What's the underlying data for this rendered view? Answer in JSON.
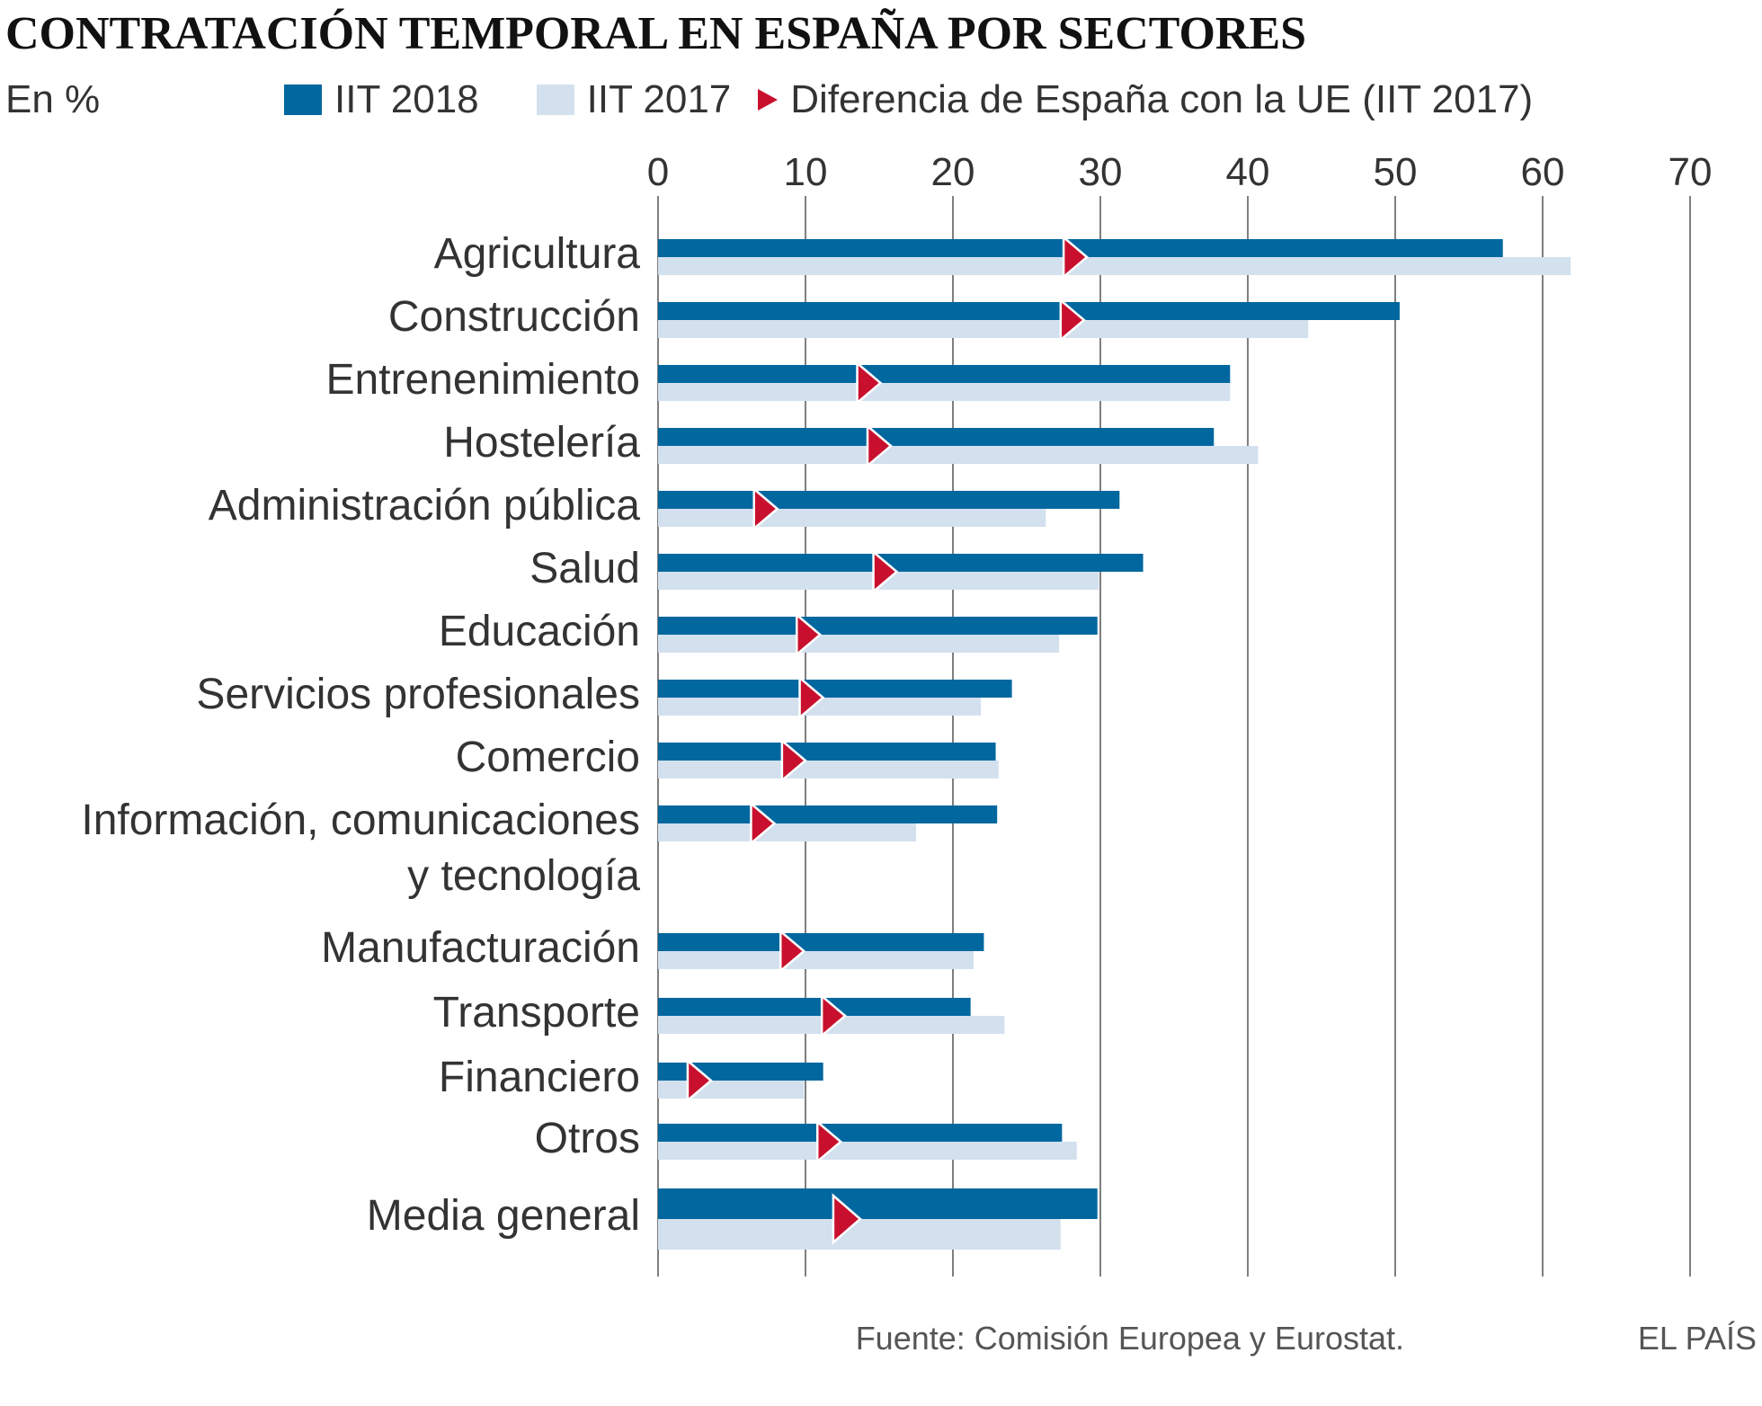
{
  "header": {
    "title": "CONTRATACIÓN TEMPORAL EN ESPAÑA POR SECTORES",
    "unit": "En %"
  },
  "legend": {
    "s2018": "IIT 2018",
    "s2017": "IIT 2017",
    "diff": "Diferencia de España con la UE (IIT 2017)"
  },
  "footer": {
    "source": "Fuente: Comisión Europea y Eurostat.",
    "brand": "EL PAÍS"
  },
  "colors": {
    "s2018": "#00679f",
    "s2017": "#d3e0ee",
    "diff": "#c8102e",
    "grid": "#555555"
  },
  "chart_data": {
    "type": "bar",
    "orientation": "horizontal",
    "xlim": [
      0,
      70
    ],
    "xticks": [
      0,
      10,
      20,
      30,
      40,
      50,
      60,
      70
    ],
    "grid": true,
    "legend_placement": "top",
    "categories": [
      [
        "Agricultura"
      ],
      [
        "Construcción"
      ],
      [
        "Entrenenimiento"
      ],
      [
        "Hostelería"
      ],
      [
        "Administración pública"
      ],
      [
        "Salud"
      ],
      [
        "Educación"
      ],
      [
        "Servicios profesionales"
      ],
      [
        "Comercio"
      ],
      [
        "Información, comunicaciones",
        "y tecnología"
      ],
      [
        "Manufacturación"
      ],
      [
        "Transporte"
      ],
      [
        "Financiero"
      ],
      [
        "Otros"
      ],
      [
        "Media general"
      ]
    ],
    "series": [
      {
        "name": "IIT 2018",
        "values": [
          57.3,
          50.3,
          38.8,
          37.7,
          31.3,
          32.9,
          29.8,
          24.0,
          22.9,
          23.0,
          22.1,
          21.2,
          11.2,
          27.4,
          29.8
        ]
      },
      {
        "name": "IIT 2017",
        "values": [
          61.9,
          44.1,
          38.8,
          40.7,
          26.3,
          29.9,
          27.2,
          21.9,
          23.1,
          17.5,
          21.4,
          23.5,
          9.9,
          28.4,
          27.3
        ]
      },
      {
        "name": "Diferencia de España con la UE (IIT 2017)",
        "values": [
          28.3,
          28.1,
          14.3,
          15.0,
          7.3,
          15.4,
          10.2,
          10.4,
          9.2,
          7.1,
          9.1,
          11.9,
          2.8,
          11.6,
          12.8
        ]
      }
    ]
  }
}
